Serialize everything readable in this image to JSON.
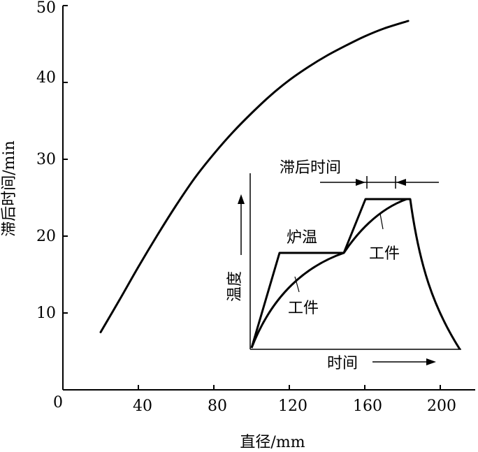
{
  "chart_data": {
    "type": "line",
    "xlabel": "直径/mm",
    "ylabel": "滞后时间/min",
    "xlim": [
      0,
      220
    ],
    "ylim": [
      0,
      50
    ],
    "x_ticks": [
      "0",
      "40",
      "80",
      "120",
      "160",
      "200"
    ],
    "x_tick_values": [
      0,
      40,
      80,
      120,
      160,
      200
    ],
    "y_ticks": [
      "10",
      "20",
      "30",
      "40",
      "50"
    ],
    "y_tick_values": [
      10,
      20,
      30,
      40,
      50
    ],
    "grid": false,
    "series": [
      {
        "x": [
          20,
          30,
          40,
          50,
          60,
          70,
          80,
          90,
          100,
          110,
          120,
          130,
          140,
          150,
          160,
          170,
          183
        ],
        "y": [
          7.5,
          11.7,
          16.0,
          20.1,
          24.0,
          27.6,
          30.7,
          33.5,
          36.0,
          38.3,
          40.3,
          42.0,
          43.5,
          44.8,
          46.0,
          47.0,
          48.0
        ]
      }
    ]
  },
  "inset": {
    "title": "滞后时间",
    "ylabel": "温度",
    "xlabel": "时间",
    "furnace_label": "炉温",
    "workpiece_label_1": "工件",
    "workpiece_label_2": "工件"
  }
}
